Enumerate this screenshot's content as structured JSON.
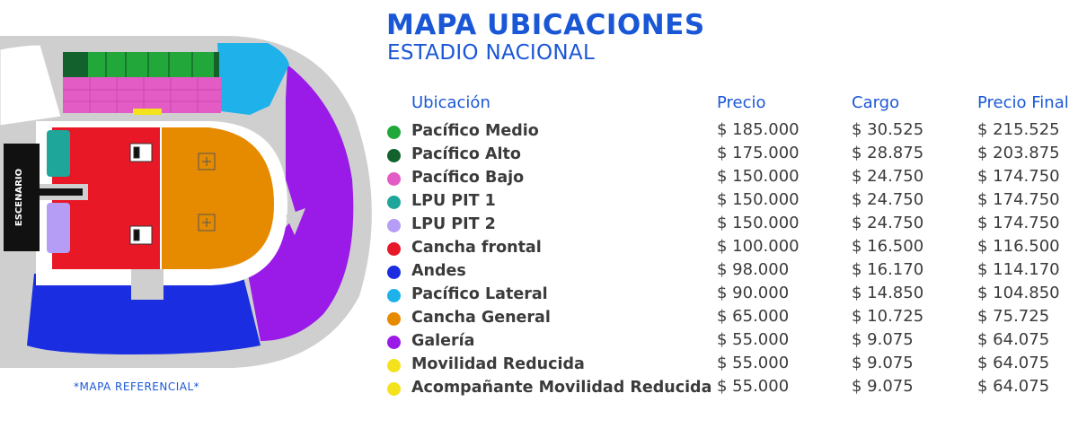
{
  "title": "MAPA UBICACIONES",
  "subtitle": "ESTADIO NACIONAL",
  "map": {
    "stage_label": "ESCENARIO",
    "note": "*MAPA REFERENCIAL*"
  },
  "table": {
    "headers": {
      "ubicacion": "Ubicación",
      "precio": "Precio",
      "cargo": "Cargo",
      "precio_final": "Precio Final"
    },
    "rows": [
      {
        "name": "Pacífico Medio",
        "color": "#22a83a",
        "precio": "$ 185.000",
        "cargo": "$ 30.525",
        "final": "$ 215.525"
      },
      {
        "name": "Pacífico Alto",
        "color": "#13622e",
        "precio": "$ 175.000",
        "cargo": "$ 28.875",
        "final": "$ 203.875"
      },
      {
        "name": "Pacífico Bajo",
        "color": "#e35bc4",
        "precio": "$ 150.000",
        "cargo": "$ 24.750",
        "final": "$ 174.750"
      },
      {
        "name": "LPU PIT 1",
        "color": "#1ea69a",
        "precio": "$ 150.000",
        "cargo": "$ 24.750",
        "final": "$ 174.750"
      },
      {
        "name": "LPU PIT 2",
        "color": "#b59cf5",
        "precio": "$ 150.000",
        "cargo": "$ 24.750",
        "final": "$ 174.750"
      },
      {
        "name": "Cancha frontal",
        "color": "#e81826",
        "precio": "$ 100.000",
        "cargo": "$ 16.500",
        "final": "$ 116.500"
      },
      {
        "name": "Andes",
        "color": "#1a2de0",
        "precio": "$ 98.000",
        "cargo": "$ 16.170",
        "final": "$ 114.170"
      },
      {
        "name": "Pacífico Lateral",
        "color": "#1eb1ea",
        "precio": "$ 90.000",
        "cargo": "$ 14.850",
        "final": "$ 104.850"
      },
      {
        "name": "Cancha General",
        "color": "#e68a00",
        "precio": "$ 65.000",
        "cargo": "$ 10.725",
        "final": "$ 75.725"
      },
      {
        "name": "Galería",
        "color": "#9a1be8",
        "precio": "$ 55.000",
        "cargo": "$ 9.075",
        "final": "$ 64.075"
      },
      {
        "name": "Movilidad Reducida",
        "color": "#f4e21c",
        "precio": "$ 55.000",
        "cargo": "$ 9.075",
        "final": "$ 64.075"
      },
      {
        "name": "Acompañante Movilidad Reducida",
        "color": "#f4e21c",
        "precio": "$ 55.000",
        "cargo": "$ 9.075",
        "final": "$ 64.075"
      }
    ]
  }
}
